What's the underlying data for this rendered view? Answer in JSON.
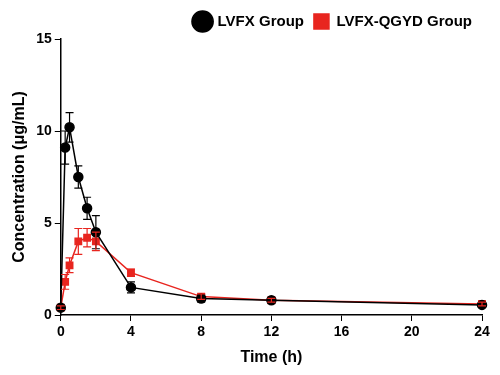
{
  "chart_data": {
    "type": "line",
    "x_label": "Time (h)",
    "y_label": "Concentration (μg/mL)",
    "x": [
      0,
      0.25,
      0.5,
      1,
      1.5,
      2,
      4,
      8,
      12,
      24
    ],
    "series": [
      {
        "name": "LVFX Group",
        "color": "#000000",
        "marker": "circle",
        "values": [
          0.4,
          9.1,
          10.2,
          7.5,
          5.8,
          4.5,
          1.5,
          0.9,
          0.8,
          0.55
        ],
        "errors": [
          0.1,
          0.9,
          0.8,
          0.6,
          0.6,
          0.9,
          0.3,
          0.2,
          0.15,
          0.1
        ]
      },
      {
        "name": "LVFX-QGYD Group",
        "color": "#e8251f",
        "marker": "square",
        "values": [
          0.4,
          1.8,
          2.7,
          4.0,
          4.2,
          4.0,
          2.3,
          1.0,
          0.8,
          0.6
        ],
        "errors": [
          0.1,
          0.4,
          0.4,
          0.7,
          0.5,
          0.5,
          0.2,
          0.15,
          0.1,
          0.1
        ]
      }
    ],
    "xlim": [
      0,
      24
    ],
    "xticks": [
      0,
      4,
      8,
      12,
      16,
      20,
      24
    ],
    "ylim": [
      0,
      15
    ],
    "yticks": [
      0,
      5,
      10,
      15
    ],
    "grid": false,
    "legend": "top right"
  }
}
